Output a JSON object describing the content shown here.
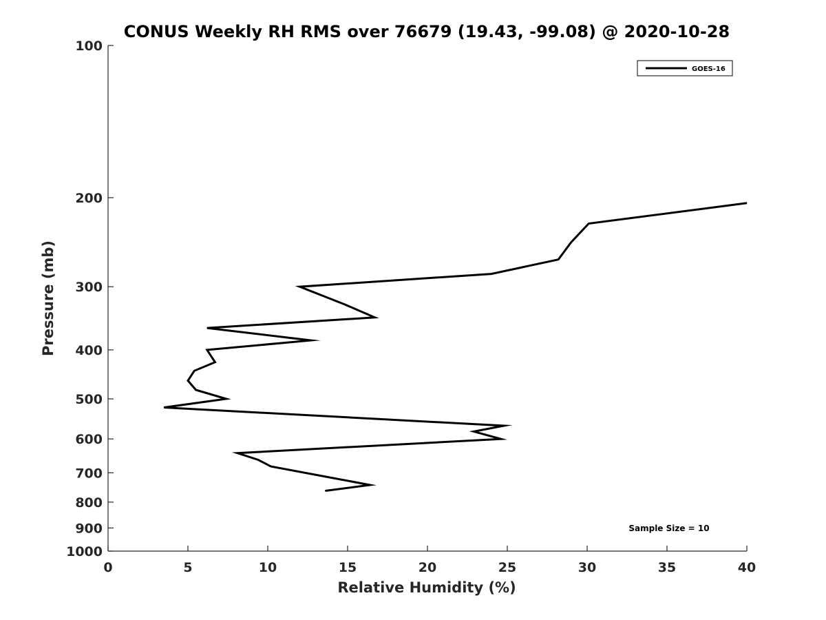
{
  "chart_data": {
    "type": "line",
    "title": "CONUS Weekly RH RMS over 76679 (19.43, -99.08) @ 2020-10-28",
    "xlabel": "Relative Humidity (%)",
    "ylabel": "Pressure (mb)",
    "xlim": [
      0,
      40
    ],
    "ylim": [
      100,
      1000
    ],
    "y_scale": "log",
    "y_reversed": true,
    "grid": false,
    "legend_position": "top-right",
    "x_ticks": [
      "0",
      "5",
      "10",
      "15",
      "20",
      "25",
      "30",
      "35",
      "40"
    ],
    "y_ticks": [
      "100",
      "200",
      "300",
      "400",
      "500",
      "600",
      "700",
      "800",
      "900",
      "1000"
    ],
    "annotation": "Sample Size = 10",
    "series": [
      {
        "name": "GOES-16",
        "color": "#000000",
        "points": [
          {
            "x": 40.0,
            "y": 205
          },
          {
            "x": 30.1,
            "y": 225
          },
          {
            "x": 29.0,
            "y": 245
          },
          {
            "x": 28.2,
            "y": 265
          },
          {
            "x": 24.0,
            "y": 283
          },
          {
            "x": 12.0,
            "y": 300
          },
          {
            "x": 14.8,
            "y": 325
          },
          {
            "x": 16.7,
            "y": 345
          },
          {
            "x": 6.2,
            "y": 362
          },
          {
            "x": 12.7,
            "y": 383
          },
          {
            "x": 6.2,
            "y": 400
          },
          {
            "x": 6.7,
            "y": 423
          },
          {
            "x": 5.4,
            "y": 440
          },
          {
            "x": 5.0,
            "y": 460
          },
          {
            "x": 5.5,
            "y": 480
          },
          {
            "x": 7.4,
            "y": 500
          },
          {
            "x": 3.5,
            "y": 520
          },
          {
            "x": 24.8,
            "y": 565
          },
          {
            "x": 22.9,
            "y": 580
          },
          {
            "x": 24.6,
            "y": 600
          },
          {
            "x": 8.1,
            "y": 640
          },
          {
            "x": 9.4,
            "y": 660
          },
          {
            "x": 10.2,
            "y": 680
          },
          {
            "x": 13.9,
            "y": 715
          },
          {
            "x": 16.4,
            "y": 740
          },
          {
            "x": 13.6,
            "y": 760
          }
        ]
      }
    ]
  }
}
